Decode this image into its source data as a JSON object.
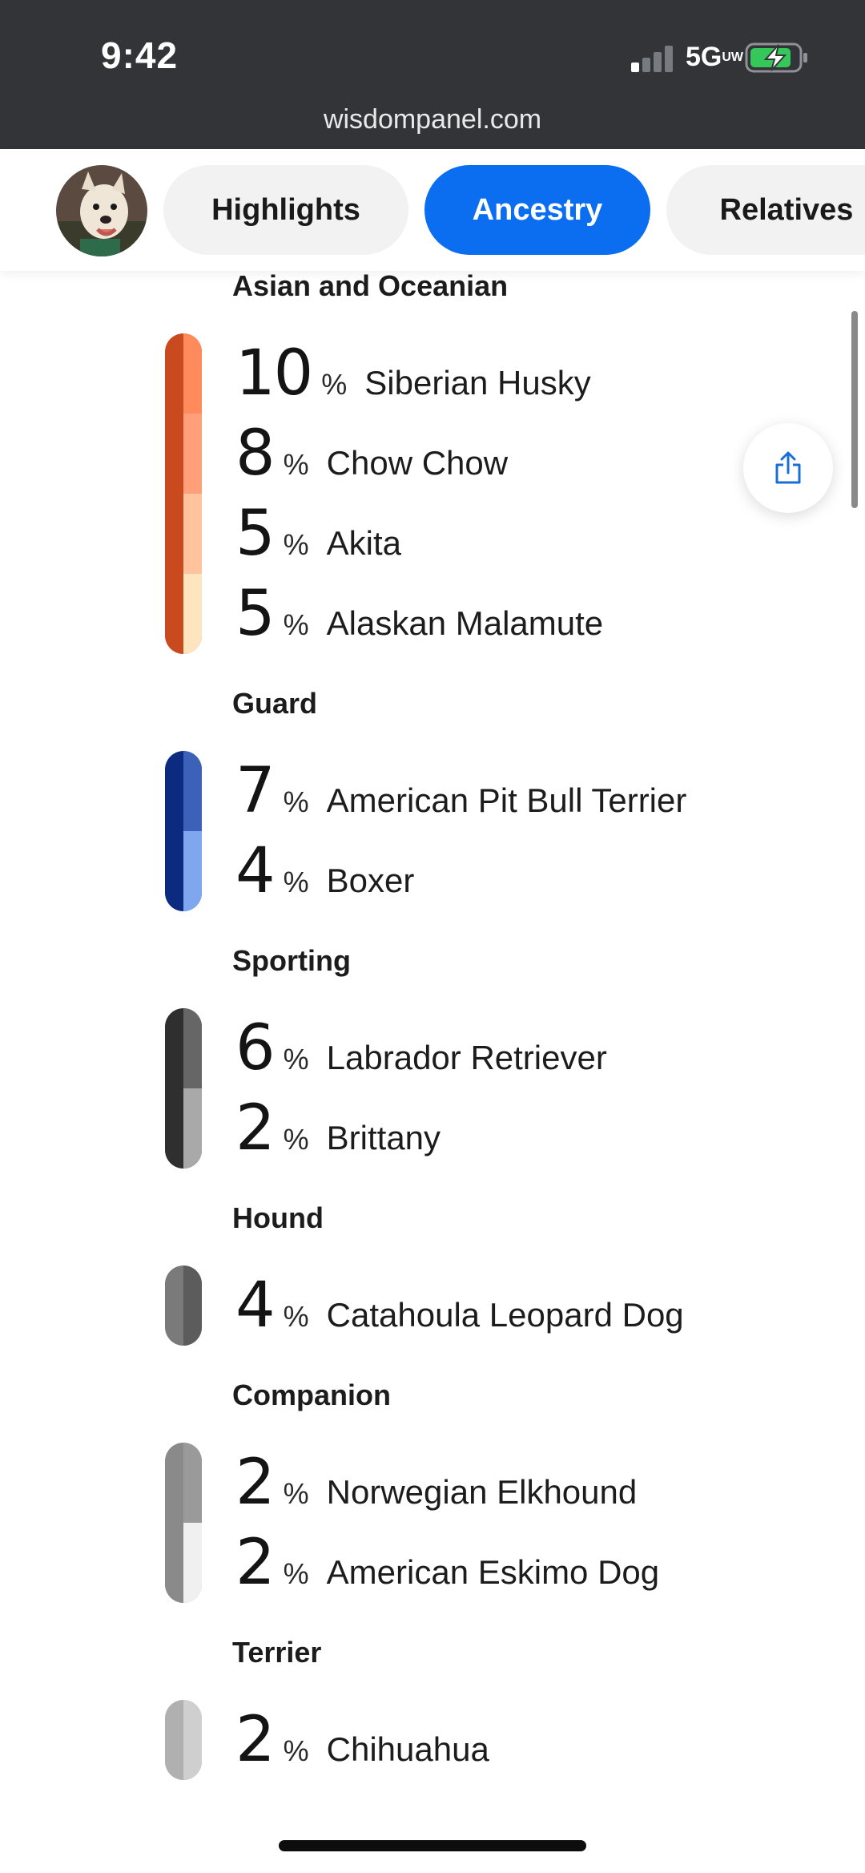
{
  "status_bar": {
    "time": "9:42",
    "network": "5G",
    "network_sub": "UW"
  },
  "browser": {
    "url": "wisdompanel.com"
  },
  "tabs": [
    {
      "label": "Highlights",
      "active": false
    },
    {
      "label": "Ancestry",
      "active": true
    },
    {
      "label": "Relatives",
      "active": false
    }
  ],
  "groups": [
    {
      "title": "Asian and Oceanian",
      "breeds": [
        {
          "percent": "10",
          "unit": "%",
          "name": "Siberian Husky",
          "color": "#ff8a5c"
        },
        {
          "percent": "8",
          "unit": "%",
          "name": "Chow Chow",
          "color": "#ffa07a"
        },
        {
          "percent": "5",
          "unit": "%",
          "name": "Akita",
          "color": "#ffc39e"
        },
        {
          "percent": "5",
          "unit": "%",
          "name": "Alaskan Malamute",
          "color": "#ffe5bf"
        }
      ],
      "group_color": "#c94a1f"
    },
    {
      "title": "Guard",
      "breeds": [
        {
          "percent": "7",
          "unit": "%",
          "name": "American Pit Bull Terrier",
          "color": "#3b62b8"
        },
        {
          "percent": "4",
          "unit": "%",
          "name": "Boxer",
          "color": "#7fa7ef"
        }
      ],
      "group_color": "#0b2a80"
    },
    {
      "title": "Sporting",
      "breeds": [
        {
          "percent": "6",
          "unit": "%",
          "name": "Labrador Retriever",
          "color": "#666666"
        },
        {
          "percent": "2",
          "unit": "%",
          "name": "Brittany",
          "color": "#a9a9a9"
        }
      ],
      "group_color": "#2f2f2f"
    },
    {
      "title": "Hound",
      "breeds": [
        {
          "percent": "4",
          "unit": "%",
          "name": "Catahoula Leopard Dog",
          "color": "#5c5c5c"
        }
      ],
      "group_color": "#7a7a7a"
    },
    {
      "title": "Companion",
      "breeds": [
        {
          "percent": "2",
          "unit": "%",
          "name": "Norwegian Elkhound",
          "color": "#9a9a9a"
        },
        {
          "percent": "2",
          "unit": "%",
          "name": "American Eskimo Dog",
          "color": "#f0f0f0"
        }
      ],
      "group_color": "#8a8a8a"
    },
    {
      "title": "Terrier",
      "breeds": [
        {
          "percent": "2",
          "unit": "%",
          "name": "Chihuahua",
          "color": "#cfcfcf"
        }
      ],
      "group_color": "#b0b0b0"
    }
  ],
  "icons": {
    "share": "share-icon",
    "avatar": "dog-avatar"
  }
}
